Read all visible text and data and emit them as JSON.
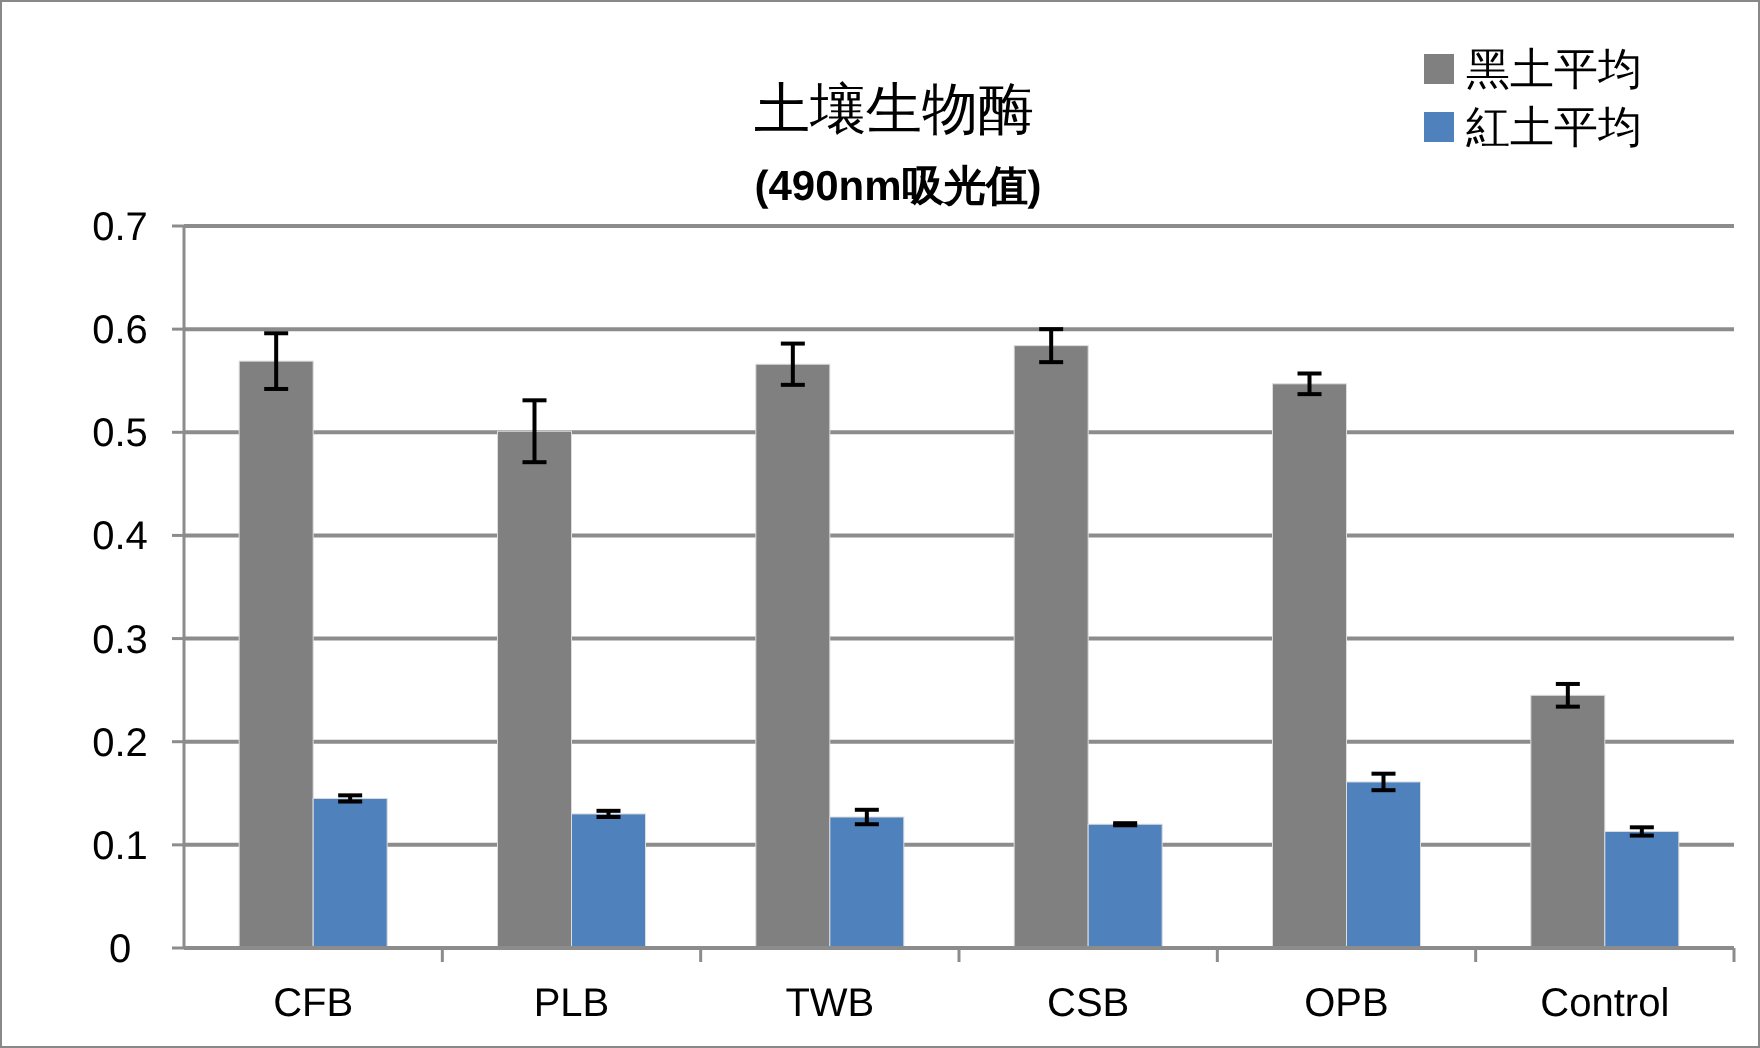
{
  "chart_data": {
    "type": "bar",
    "title": "土壤生物酶",
    "subtitle": "(490nm吸光值)",
    "categories": [
      "CFB",
      "PLB",
      "TWB",
      "CSB",
      "OPB",
      "Control"
    ],
    "series": [
      {
        "name": "黑土平均",
        "color": "#808080",
        "values": [
          0.569,
          0.501,
          0.566,
          0.584,
          0.547,
          0.245
        ],
        "errors": [
          0.027,
          0.03,
          0.02,
          0.016,
          0.01,
          0.011
        ]
      },
      {
        "name": "紅土平均",
        "color": "#4f81bd",
        "values": [
          0.145,
          0.13,
          0.127,
          0.12,
          0.161,
          0.113
        ],
        "errors": [
          0.003,
          0.003,
          0.007,
          0.001,
          0.008,
          0.004
        ]
      }
    ],
    "ylim": [
      0,
      0.7
    ],
    "yticks": [
      0,
      0.1,
      0.2,
      0.3,
      0.4,
      0.5,
      0.6,
      0.7
    ],
    "grid": "y",
    "legend": "top right"
  }
}
